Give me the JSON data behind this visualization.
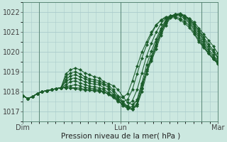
{
  "xlabel": "Pression niveau de la mer( hPa )",
  "ylim": [
    1016.5,
    1022.5
  ],
  "xlim": [
    0,
    48
  ],
  "yticks": [
    1017,
    1018,
    1019,
    1020,
    1021,
    1022
  ],
  "xtick_positions": [
    0,
    24,
    48
  ],
  "xtick_labels": [
    "Dim",
    "Lun",
    "Mar"
  ],
  "vlines": [
    4,
    24,
    44
  ],
  "background_color": "#cce8e0",
  "grid_color": "#aacccc",
  "line_color": "#1a5c2a",
  "marker_color": "#1a5c2a",
  "lines": [
    [
      1017.8,
      1017.65,
      1017.75,
      1017.9,
      1018.0,
      1018.05,
      1018.1,
      1018.15,
      1018.2,
      1018.9,
      1019.1,
      1019.2,
      1019.1,
      1018.95,
      1018.85,
      1018.75,
      1018.7,
      1018.5,
      1018.4,
      1018.3,
      1018.1,
      1017.75,
      1017.45,
      1017.35,
      1017.55,
      1018.35,
      1019.05,
      1019.55,
      1020.15,
      1020.85,
      1021.35,
      1021.72,
      1021.85,
      1021.9,
      1021.8,
      1021.7,
      1021.5,
      1021.2,
      1020.9,
      1020.6,
      1020.3,
      1019.92
    ],
    [
      1017.8,
      1017.65,
      1017.75,
      1017.9,
      1018.0,
      1018.05,
      1018.1,
      1018.15,
      1018.2,
      1018.75,
      1018.95,
      1019.0,
      1018.9,
      1018.75,
      1018.65,
      1018.6,
      1018.55,
      1018.4,
      1018.3,
      1018.1,
      1017.8,
      1017.5,
      1017.25,
      1017.15,
      1017.4,
      1018.2,
      1019.1,
      1019.7,
      1020.35,
      1021.0,
      1021.5,
      1021.8,
      1021.9,
      1021.9,
      1021.8,
      1021.65,
      1021.4,
      1021.1,
      1020.75,
      1020.4,
      1020.1,
      1019.75
    ],
    [
      1017.8,
      1017.65,
      1017.75,
      1017.9,
      1018.0,
      1018.05,
      1018.1,
      1018.15,
      1018.2,
      1018.6,
      1018.8,
      1018.85,
      1018.75,
      1018.65,
      1018.55,
      1018.5,
      1018.45,
      1018.35,
      1018.2,
      1018.0,
      1017.7,
      1017.4,
      1017.2,
      1017.1,
      1017.3,
      1018.0,
      1018.9,
      1019.6,
      1020.3,
      1020.95,
      1021.45,
      1021.75,
      1021.9,
      1021.95,
      1021.85,
      1021.65,
      1021.4,
      1021.05,
      1020.65,
      1020.3,
      1020.0,
      1019.7
    ],
    [
      1017.8,
      1017.65,
      1017.75,
      1017.9,
      1018.0,
      1018.05,
      1018.1,
      1018.15,
      1018.2,
      1018.5,
      1018.65,
      1018.7,
      1018.6,
      1018.5,
      1018.42,
      1018.38,
      1018.35,
      1018.2,
      1018.1,
      1017.85,
      1017.6,
      1017.3,
      1017.15,
      1017.1,
      1017.35,
      1018.15,
      1019.1,
      1019.8,
      1020.5,
      1021.1,
      1021.55,
      1021.8,
      1021.9,
      1021.9,
      1021.8,
      1021.6,
      1021.3,
      1020.95,
      1020.55,
      1020.15,
      1019.85,
      1019.55
    ],
    [
      1017.8,
      1017.65,
      1017.75,
      1017.9,
      1018.0,
      1018.05,
      1018.1,
      1018.15,
      1018.2,
      1018.35,
      1018.5,
      1018.55,
      1018.45,
      1018.35,
      1018.28,
      1018.25,
      1018.2,
      1018.1,
      1017.95,
      1017.75,
      1017.55,
      1017.35,
      1017.2,
      1017.25,
      1017.6,
      1018.45,
      1019.35,
      1020.05,
      1020.65,
      1021.2,
      1021.6,
      1021.82,
      1021.9,
      1021.88,
      1021.75,
      1021.52,
      1021.2,
      1020.82,
      1020.42,
      1020.05,
      1019.75,
      1019.5
    ],
    [
      1017.8,
      1017.65,
      1017.75,
      1017.9,
      1018.0,
      1018.05,
      1018.1,
      1018.15,
      1018.2,
      1018.25,
      1018.3,
      1018.35,
      1018.3,
      1018.22,
      1018.18,
      1018.15,
      1018.1,
      1018.0,
      1017.85,
      1017.7,
      1017.5,
      1017.35,
      1017.3,
      1017.55,
      1018.1,
      1018.95,
      1019.8,
      1020.45,
      1021.0,
      1021.42,
      1021.7,
      1021.82,
      1021.85,
      1021.82,
      1021.68,
      1021.45,
      1021.1,
      1020.72,
      1020.32,
      1019.95,
      1019.65,
      1019.4
    ],
    [
      1017.8,
      1017.65,
      1017.75,
      1017.9,
      1018.0,
      1018.05,
      1018.1,
      1018.15,
      1018.2,
      1018.2,
      1018.2,
      1018.2,
      1018.18,
      1018.12,
      1018.1,
      1018.08,
      1018.05,
      1017.98,
      1017.88,
      1017.75,
      1017.6,
      1017.5,
      1017.6,
      1018.1,
      1018.9,
      1019.7,
      1020.35,
      1020.9,
      1021.35,
      1021.62,
      1021.78,
      1021.8,
      1021.78,
      1021.7,
      1021.55,
      1021.32,
      1020.98,
      1020.6,
      1020.25,
      1019.92,
      1019.65,
      1019.42
    ],
    [
      1017.8,
      1017.65,
      1017.75,
      1017.9,
      1018.0,
      1018.05,
      1018.1,
      1018.15,
      1018.18,
      1018.2,
      1018.18,
      1018.15,
      1018.1,
      1018.08,
      1018.06,
      1018.04,
      1018.02,
      1017.98,
      1017.9,
      1017.82,
      1017.75,
      1017.72,
      1017.9,
      1018.55,
      1019.3,
      1020.0,
      1020.52,
      1021.0,
      1021.38,
      1021.6,
      1021.72,
      1021.75,
      1021.72,
      1021.62,
      1021.45,
      1021.22,
      1020.9,
      1020.52,
      1020.22,
      1019.92,
      1019.68,
      1019.48
    ]
  ]
}
